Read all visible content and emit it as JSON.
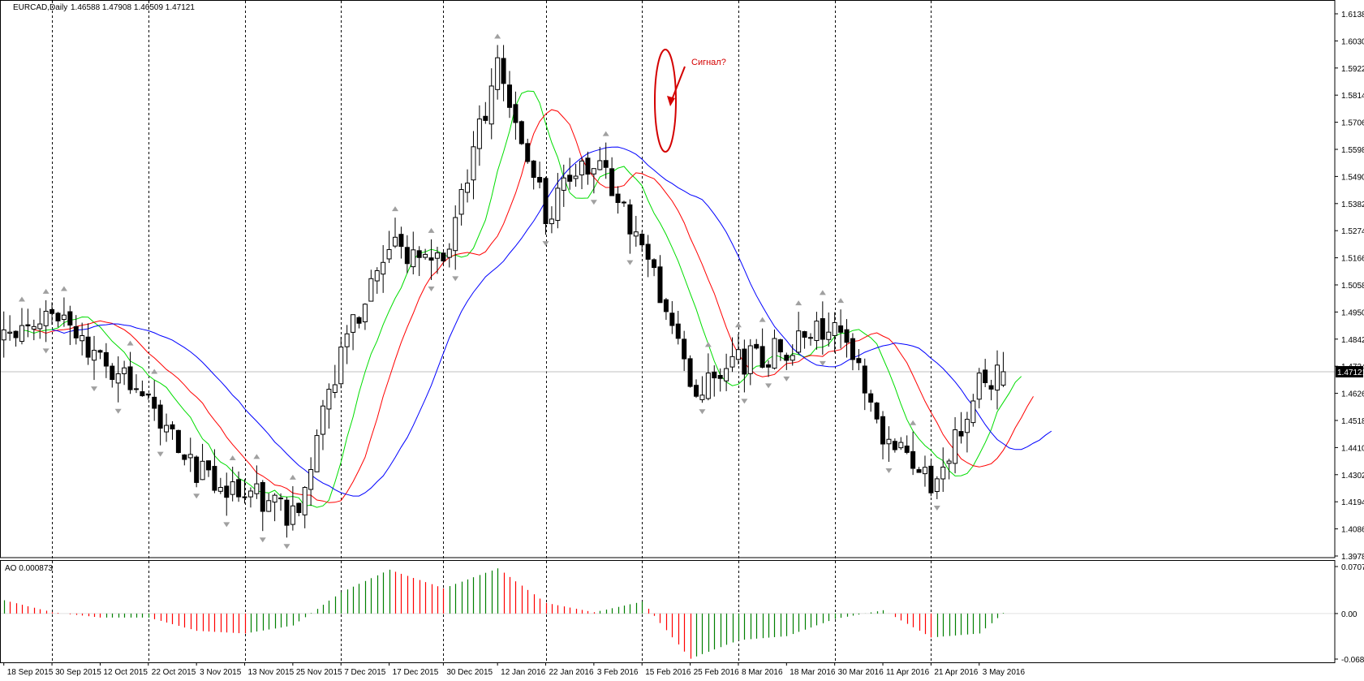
{
  "header": {
    "symbol": "EURCAD,Daily",
    "ohlc": "1.46588 1.47908 1.46509 1.47121"
  },
  "colors": {
    "bull_body": "#ffffff",
    "bear_body": "#000000",
    "sma_fast": "#00dd00",
    "sma_mid": "#ff0000",
    "sma_slow": "#0000ff",
    "ao_up": "#008000",
    "ao_down": "#ff0000",
    "annotation": "#d40000"
  },
  "annotation": {
    "text": "Сигнал?"
  },
  "current_price_label": "1.47121",
  "chart_data": [
    {
      "type": "candlestick",
      "title": "EURCAD,Daily",
      "ylim": [
        1.3978,
        1.6138
      ],
      "y_ticks": [
        "1.61380",
        "1.60300",
        "1.59220",
        "1.58140",
        "1.57060",
        "1.55980",
        "1.54900",
        "1.53820",
        "1.52740",
        "1.51660",
        "1.50580",
        "1.49500",
        "1.48420",
        "1.47340",
        "1.46260",
        "1.45180",
        "1.44100",
        "1.43020",
        "1.41940",
        "1.40860",
        "1.39780"
      ],
      "x_labels": [
        "18 Sep 2015",
        "30 Sep 2015",
        "12 Oct 2015",
        "22 Oct 2015",
        "3 Nov 2015",
        "13 Nov 2015",
        "25 Nov 2015",
        "7 Dec 2015",
        "17 Dec 2015",
        "30 Dec 2015",
        "12 Jan 2016",
        "22 Jan 2016",
        "3 Feb 2016",
        "15 Feb 2016",
        "25 Feb 2016",
        "8 Mar 2016",
        "18 Mar 2016",
        "30 Mar 2016",
        "11 Apr 2016",
        "21 Apr 2016",
        "3 May 2016"
      ],
      "close_anchors": [
        {
          "date": "18 Sep 2015",
          "close": 1.488
        },
        {
          "date": "30 Sep 2015",
          "close": 1.494
        },
        {
          "date": "12 Oct 2015",
          "close": 1.478
        },
        {
          "date": "22 Oct 2015",
          "close": 1.458
        },
        {
          "date": "3 Nov 2015",
          "close": 1.432
        },
        {
          "date": "13 Nov 2015",
          "close": 1.424
        },
        {
          "date": "25 Nov 2015",
          "close": 1.412
        },
        {
          "date": "7 Dec 2015",
          "close": 1.478
        },
        {
          "date": "17 Dec 2015",
          "close": 1.523
        },
        {
          "date": "30 Dec 2015",
          "close": 1.512
        },
        {
          "date": "12 Jan 2016",
          "close": 1.593
        },
        {
          "date": "22 Jan 2016",
          "close": 1.535
        },
        {
          "date": "3 Feb 2016",
          "close": 1.557
        },
        {
          "date": "15 Feb 2016",
          "close": 1.522
        },
        {
          "date": "25 Feb 2016",
          "close": 1.464
        },
        {
          "date": "8 Mar 2016",
          "close": 1.475
        },
        {
          "date": "18 Mar 2016",
          "close": 1.48
        },
        {
          "date": "30 Mar 2016",
          "close": 1.492
        },
        {
          "date": "11 Apr 2016",
          "close": 1.448
        },
        {
          "date": "21 Apr 2016",
          "close": 1.425
        },
        {
          "date": "3 May 2016",
          "close": 1.465
        },
        {
          "date": "9 May 2016",
          "close": 1.4712
        }
      ],
      "last_bar": {
        "open": 1.46588,
        "high": 1.47908,
        "low": 1.46509,
        "close": 1.47121
      },
      "moving_averages": [
        {
          "color": "sma_fast"
        },
        {
          "color": "sma_mid"
        },
        {
          "color": "sma_slow"
        }
      ]
    },
    {
      "type": "bar",
      "title": "AO 0.000873",
      "ylim": [
        -0.06853,
        0.070722
      ],
      "y_ticks": [
        "0.070722",
        "0.00",
        "-0.06853"
      ],
      "x_labels": [
        "18 Sep 2015",
        "30 Sep 2015",
        "12 Oct 2015",
        "22 Oct 2015",
        "3 Nov 2015",
        "13 Nov 2015",
        "25 Nov 2015",
        "7 Dec 2015",
        "17 Dec 2015",
        "30 Dec 2015",
        "12 Jan 2016",
        "22 Jan 2016",
        "3 Feb 2016",
        "15 Feb 2016",
        "25 Feb 2016",
        "8 Mar 2016",
        "18 Mar 2016",
        "30 Mar 2016",
        "11 Apr 2016",
        "21 Apr 2016",
        "3 May 2016"
      ],
      "value_anchors": [
        {
          "date": "18 Sep 2015",
          "value": 0.02
        },
        {
          "date": "30 Sep 2015",
          "value": 0.002
        },
        {
          "date": "12 Oct 2015",
          "value": -0.006
        },
        {
          "date": "22 Oct 2015",
          "value": -0.006
        },
        {
          "date": "3 Nov 2015",
          "value": -0.026
        },
        {
          "date": "13 Nov 2015",
          "value": -0.03
        },
        {
          "date": "25 Nov 2015",
          "value": -0.018
        },
        {
          "date": "7 Dec 2015",
          "value": 0.032
        },
        {
          "date": "17 Dec 2015",
          "value": 0.066
        },
        {
          "date": "30 Dec 2015",
          "value": 0.038
        },
        {
          "date": "12 Jan 2016",
          "value": 0.068
        },
        {
          "date": "22 Jan 2016",
          "value": 0.016
        },
        {
          "date": "3 Feb 2016",
          "value": 0.002
        },
        {
          "date": "15 Feb 2016",
          "value": 0.018
        },
        {
          "date": "25 Feb 2016",
          "value": -0.068
        },
        {
          "date": "8 Mar 2016",
          "value": -0.04
        },
        {
          "date": "18 Mar 2016",
          "value": -0.034
        },
        {
          "date": "30 Mar 2016",
          "value": -0.008
        },
        {
          "date": "11 Apr 2016",
          "value": 0.005
        },
        {
          "date": "21 Apr 2016",
          "value": -0.036
        },
        {
          "date": "3 May 2016",
          "value": -0.03
        },
        {
          "date": "9 May 2016",
          "value": 0.000873
        }
      ]
    }
  ]
}
